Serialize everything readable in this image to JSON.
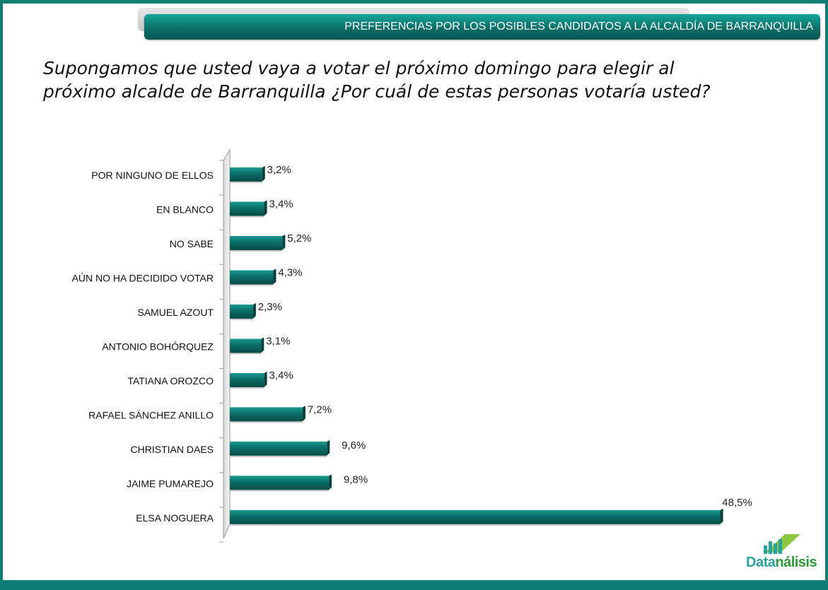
{
  "banner": {
    "title": "PREFERENCIAS POR LOS POSIBLES CANDIDATOS A LA ALCALDÍA DE BARRANQUILLA"
  },
  "question": "Supongamos que usted vaya a votar el próximo domingo para elegir al próximo alcalde de Barranquilla ¿Por cuál de estas personas votaría usted?",
  "logo": {
    "part1": "Data",
    "part2": "nálisis"
  },
  "colors": {
    "bar": "#0b6e68",
    "bar_light": "#1a9a90",
    "frame": "#0e7d76"
  },
  "chart_data": {
    "type": "bar",
    "orientation": "horizontal",
    "categories": [
      "POR NINGUNO DE ELLOS",
      "EN BLANCO",
      "NO SABE",
      "AÚN NO HA DECIDIDO VOTAR",
      "SAMUEL AZOUT",
      "ANTONIO BOHÓRQUEZ",
      "TATIANA OROZCO",
      "RAFAEL SÁNCHEZ ANILLO",
      "CHRISTIAN DAES",
      "JAIME PUMAREJO",
      "ELSA NOGUERA"
    ],
    "values": [
      3.2,
      3.4,
      5.2,
      4.3,
      2.3,
      3.1,
      3.4,
      7.2,
      9.6,
      9.8,
      48.5
    ],
    "labels": [
      "3,2%",
      "3,4%",
      "5,2%",
      "4,3%",
      "2,3%",
      "3,1%",
      "3,4%",
      "7,2%",
      "9,6%",
      "9,8%",
      "48,5%"
    ],
    "xlim": [
      0,
      50
    ],
    "grid": false,
    "legend": "none"
  }
}
